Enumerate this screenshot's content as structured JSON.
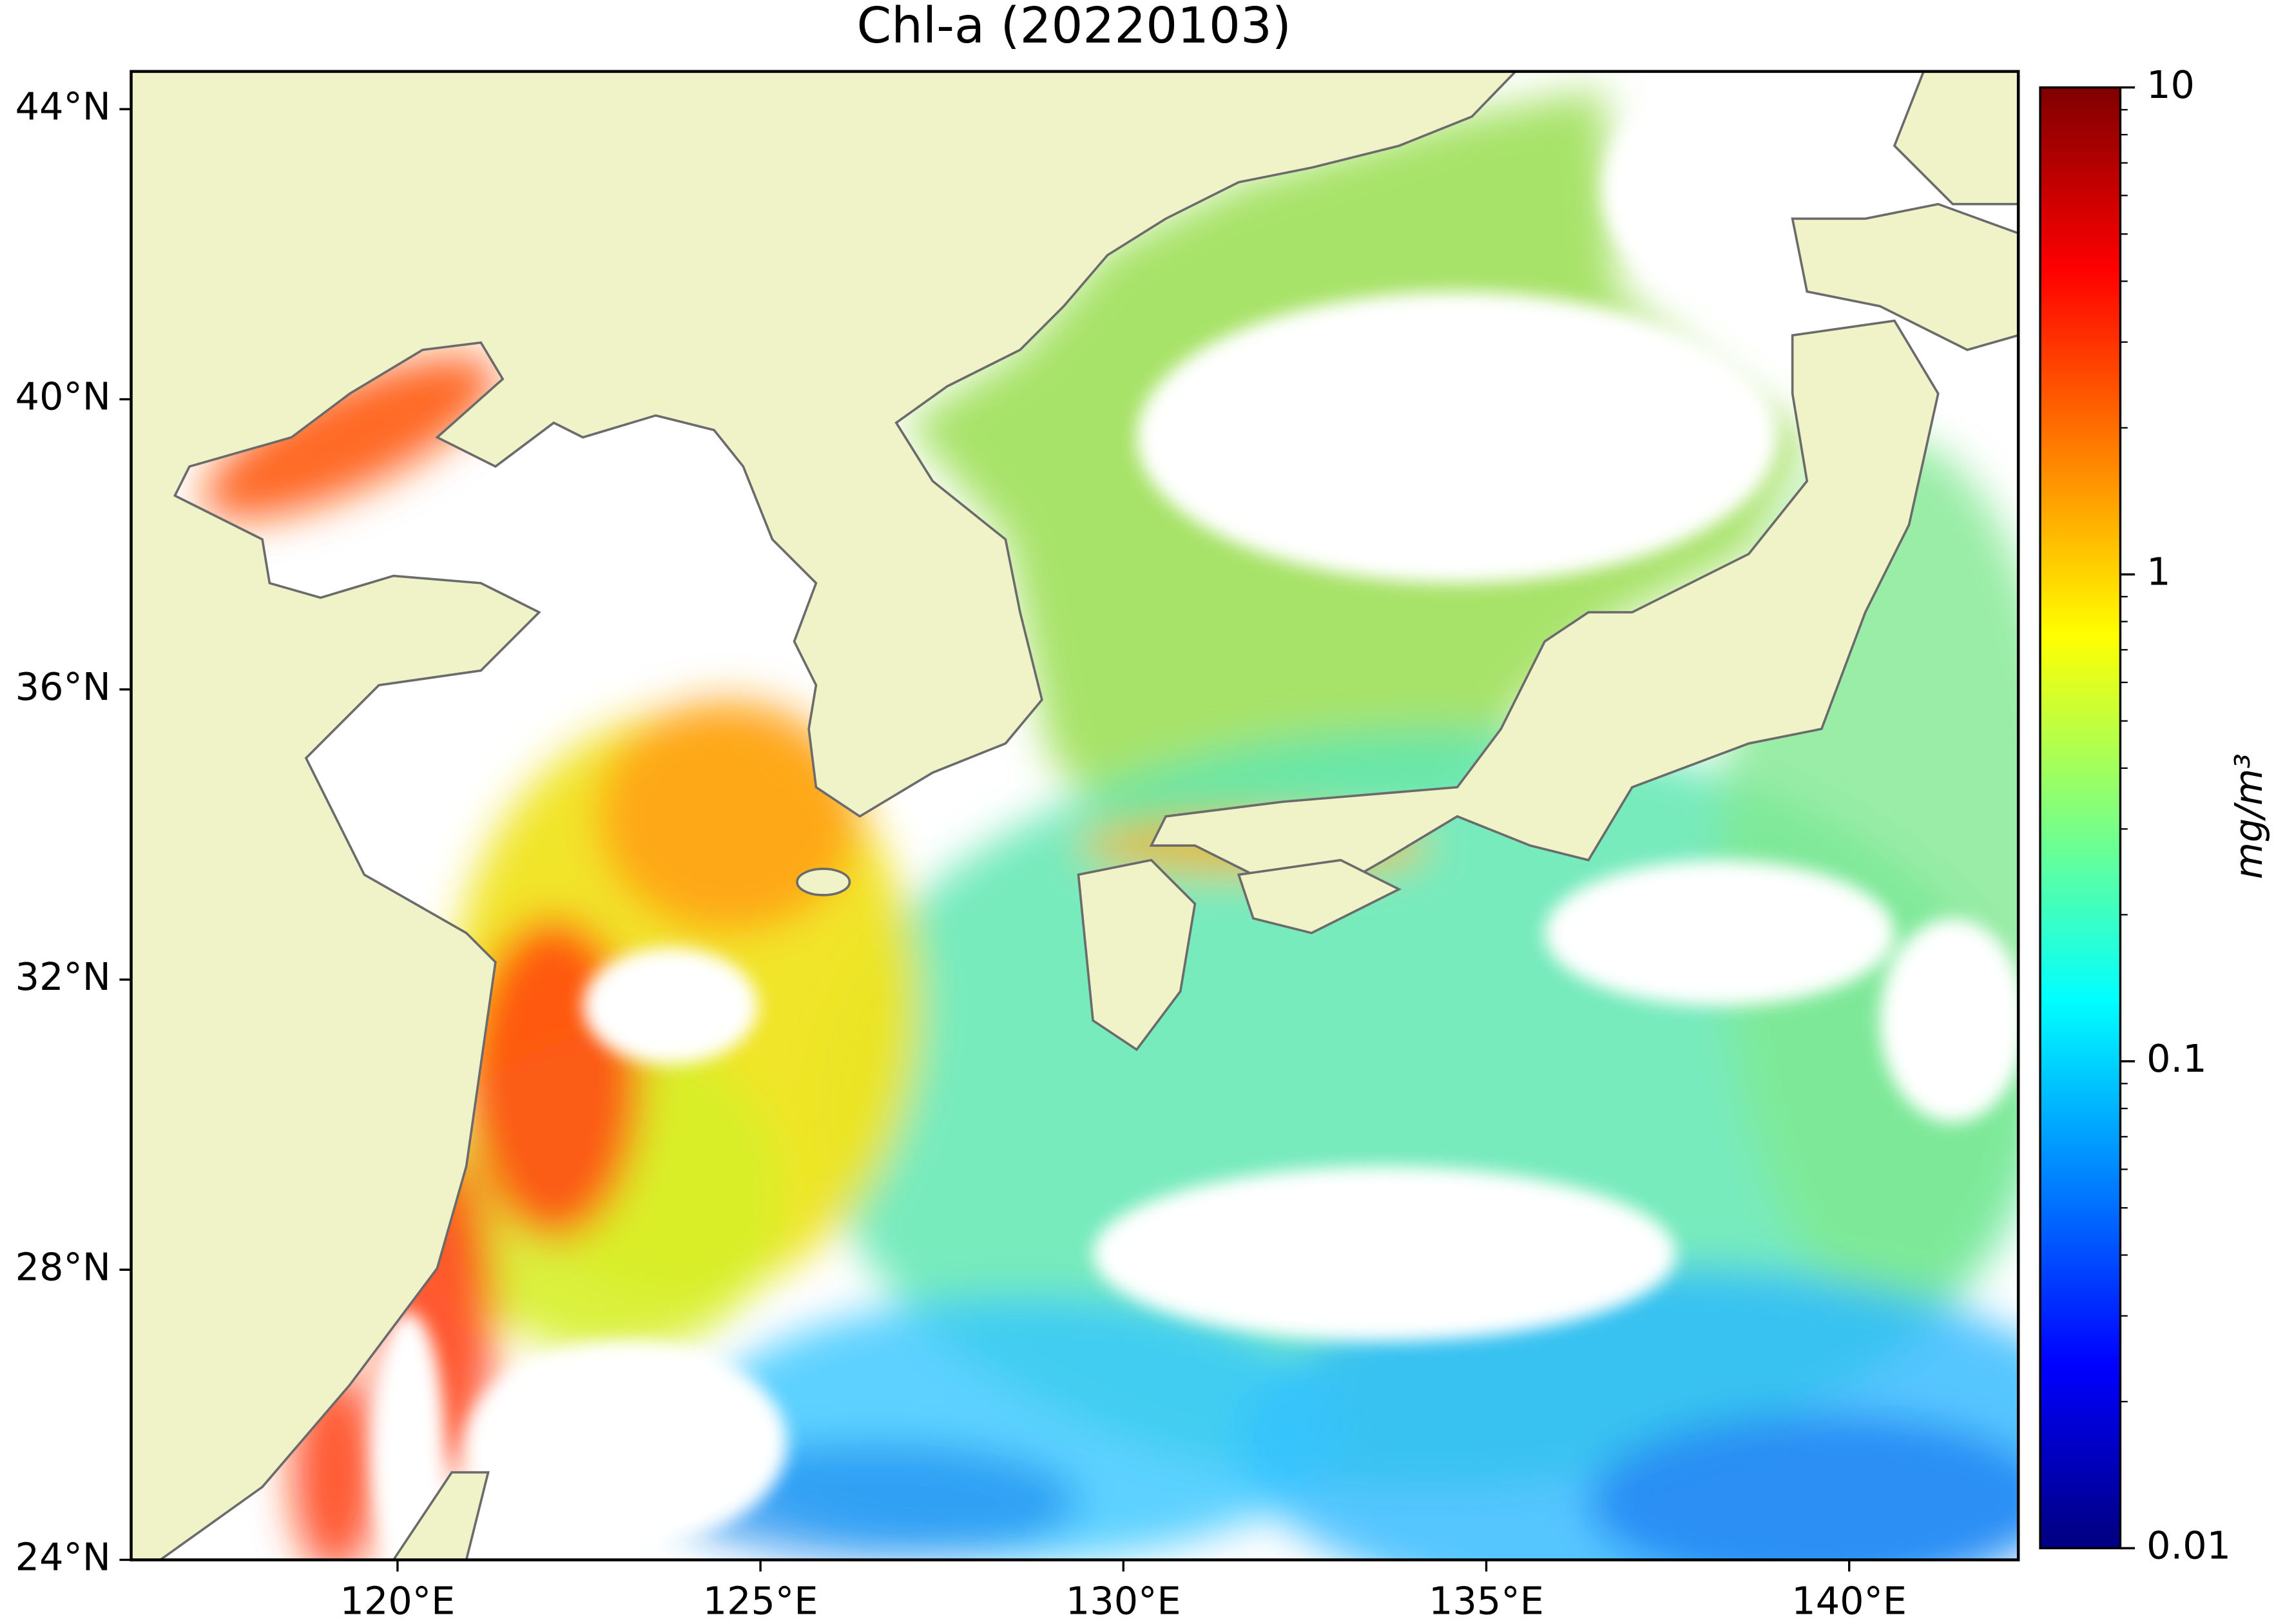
{
  "chart_data": {
    "type": "map",
    "title": "Chl-a (20220103)",
    "xlim": [
      116.33,
      142.33
    ],
    "ylim": [
      24,
      44.52
    ],
    "xticks": [
      {
        "value": 120,
        "label": "120°E"
      },
      {
        "value": 125,
        "label": "125°E"
      },
      {
        "value": 130,
        "label": "130°E"
      },
      {
        "value": 135,
        "label": "135°E"
      },
      {
        "value": 140,
        "label": "140°E"
      }
    ],
    "yticks": [
      {
        "value": 24,
        "label": "24°N"
      },
      {
        "value": 28,
        "label": "28°N"
      },
      {
        "value": 32,
        "label": "32°N"
      },
      {
        "value": 36,
        "label": "36°N"
      },
      {
        "value": 40,
        "label": "40°N"
      },
      {
        "value": 44,
        "label": "44°N"
      }
    ],
    "colorbar": {
      "label": "mg/m³",
      "scale": "log",
      "colormap": "jet",
      "lim": [
        0.01,
        10
      ],
      "ticks": [
        0.01,
        0.1,
        1,
        10
      ],
      "minor_ticks": [
        0.02,
        0.03,
        0.04,
        0.05,
        0.06,
        0.07,
        0.08,
        0.09,
        0.2,
        0.3,
        0.4,
        0.5,
        0.6,
        0.7,
        0.8,
        0.9,
        2,
        3,
        4,
        5,
        6,
        7,
        8,
        9
      ]
    }
  }
}
